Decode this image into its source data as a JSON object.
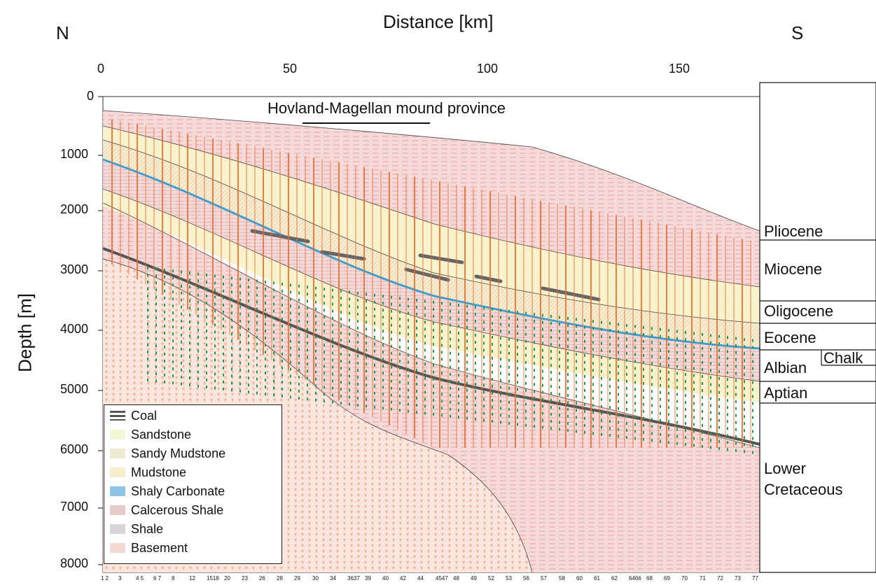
{
  "header": {
    "north": "N",
    "south": "S",
    "x_axis_title": "Distance [km]",
    "y_axis_title": "Depth [m]"
  },
  "x_ticks": [
    "0",
    "50",
    "100",
    "150"
  ],
  "y_ticks": [
    "0",
    "1000",
    "2000",
    "3000",
    "4000",
    "5000",
    "6000",
    "7000",
    "8000"
  ],
  "annotation": "Hovland-Magellan mound province",
  "well_numbers": [
    "1 2",
    "3",
    "4 5",
    "6 7",
    "8",
    "12",
    "1518",
    "20",
    "23",
    "26",
    "28",
    "29",
    "30",
    "34",
    "3637",
    "39",
    "40",
    "42",
    "44",
    "4547",
    "48",
    "49",
    "52",
    "53",
    "56",
    "57",
    "58",
    "60",
    "61",
    "62",
    "6466",
    "68",
    "69",
    "70",
    "71",
    "72",
    "73",
    "77"
  ],
  "stratigraphy": [
    {
      "label": "Pliocene"
    },
    {
      "label": "Miocene"
    },
    {
      "label": "Oligocene"
    },
    {
      "label": "Eocene"
    },
    {
      "label": "Albian"
    },
    {
      "label": "Chalk"
    },
    {
      "label": "Aptian"
    },
    {
      "label": "Lower"
    },
    {
      "label": "Cretaceous"
    }
  ],
  "legend": {
    "items": [
      {
        "label": "Coal",
        "color": "#5a5a5a"
      },
      {
        "label": "Sandstone",
        "color": "#f4f6d8"
      },
      {
        "label": "Sandy Mudstone",
        "color": "#f1ead2"
      },
      {
        "label": "Mudstone",
        "color": "#f6efcf"
      },
      {
        "label": "Shaly Carbonate",
        "color": "#8fc3e8"
      },
      {
        "label": "Calcerous Shale",
        "color": "#e6c9c9"
      },
      {
        "label": "Shale",
        "color": "#d9d3da"
      },
      {
        "label": "Basement",
        "color": "#f3d9d3"
      }
    ]
  },
  "colors": {
    "flow_down": "#ee6a2c",
    "flow_up": "#1b9a4b",
    "basement": "#f7ded5",
    "shale": "#f3d6d6",
    "sand": "#f7f0c8",
    "carbonate": "#5aa9d8",
    "coal": "#777777"
  }
}
